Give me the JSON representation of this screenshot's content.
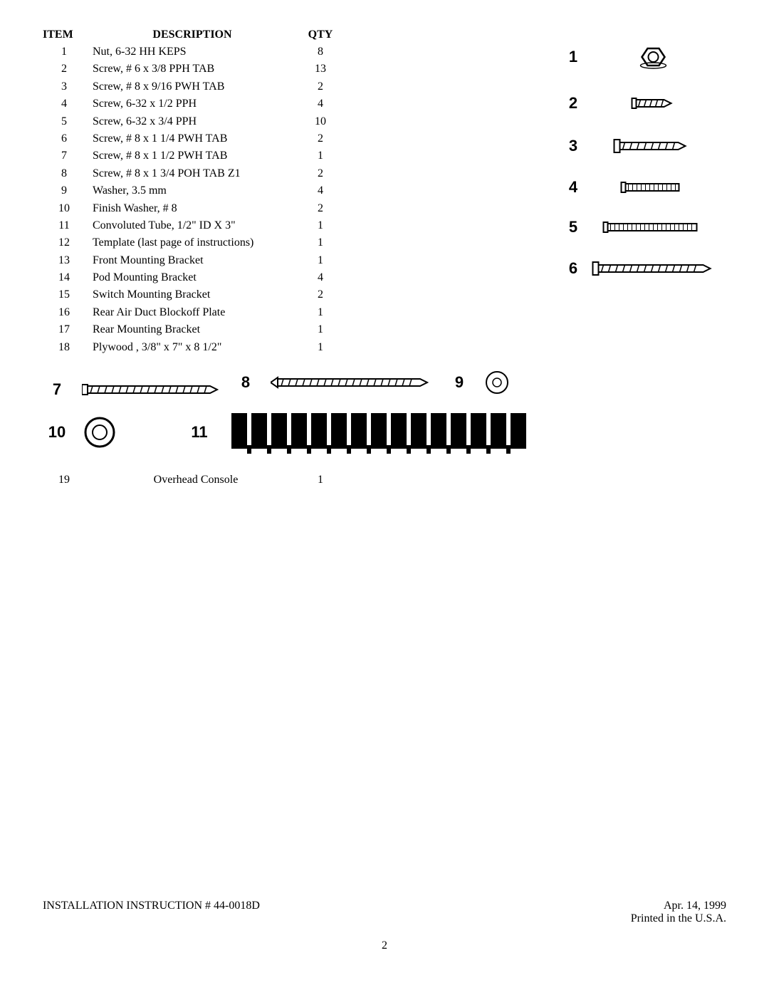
{
  "headers": {
    "item": "ITEM",
    "description": "DESCRIPTION",
    "qty": "QTY"
  },
  "rows": [
    {
      "item": "1",
      "description": "Nut, 6-32 HH KEPS",
      "qty": "8"
    },
    {
      "item": "2",
      "description": "Screw, # 6 x 3/8 PPH TAB",
      "qty": "13"
    },
    {
      "item": "3",
      "description": "Screw, # 8 x 9/16  PWH TAB",
      "qty": "2"
    },
    {
      "item": "4",
      "description": "Screw, 6-32 x 1/2 PPH",
      "qty": "4"
    },
    {
      "item": "5",
      "description": "Screw, 6-32 x 3/4 PPH",
      "qty": "10"
    },
    {
      "item": "6",
      "description": "Screw, # 8 x 1 1/4 PWH TAB",
      "qty": "2"
    },
    {
      "item": "7",
      "description": "Screw, # 8 x 1 1/2 PWH TAB",
      "qty": "1"
    },
    {
      "item": "8",
      "description": "Screw, # 8 x 1 3/4 POH TAB Z1",
      "qty": "2"
    },
    {
      "item": "9",
      "description": "Washer, 3.5 mm",
      "qty": "4"
    },
    {
      "item": "10",
      "description": "Finish Washer, # 8",
      "qty": "2"
    },
    {
      "item": "11",
      "description": "Convoluted Tube, 1/2\" ID X  3\"",
      "qty": "1"
    },
    {
      "item": "12",
      "description": "Template  (last page of instructions)",
      "qty": "1"
    },
    {
      "item": "13",
      "description": "Front Mounting Bracket",
      "qty": "1"
    },
    {
      "item": "14",
      "description": "Pod Mounting Bracket",
      "qty": "4"
    },
    {
      "item": "15",
      "description": "Switch Mounting Bracket",
      "qty": "2"
    },
    {
      "item": "16",
      "description": "Rear Air Duct Blockoff Plate",
      "qty": "1"
    },
    {
      "item": "17",
      "description": "Rear Mounting Bracket",
      "qty": "1"
    },
    {
      "item": "18",
      "description": "Plywood , 3/8\" x 7\" x 8 1/2\"",
      "qty": "1"
    }
  ],
  "overheadRow": {
    "item": "19",
    "description": "Overhead Console",
    "qty": "1"
  },
  "illusNums": {
    "n1": "1",
    "n2": "2",
    "n3": "3",
    "n4": "4",
    "n5": "5",
    "n6": "6",
    "n7": "7",
    "n8": "8",
    "n9": "9",
    "n10": "10",
    "n11": "11"
  },
  "footer": {
    "left": "INSTALLATION INSTRUCTION # 44-0018D",
    "date": "Apr. 14, 1999",
    "printed": "Printed in the U.S.A.",
    "pageNum": "2"
  }
}
